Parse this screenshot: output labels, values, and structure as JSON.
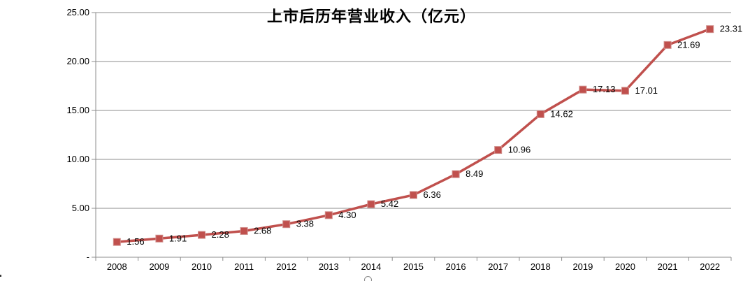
{
  "chart_data": {
    "type": "line",
    "title": "上市后历年营业收入（亿元）",
    "categories": [
      "2008",
      "2009",
      "2010",
      "2011",
      "2012",
      "2013",
      "2014",
      "2015",
      "2016",
      "2017",
      "2018",
      "2019",
      "2020",
      "2021",
      "2022"
    ],
    "values": [
      1.56,
      1.91,
      2.28,
      2.68,
      3.38,
      4.3,
      5.42,
      6.36,
      8.49,
      10.96,
      14.62,
      17.13,
      17.01,
      21.69,
      23.31
    ],
    "data_labels": [
      "1.56",
      "1.91",
      "2.28",
      "2.68",
      "3.38",
      "4.30",
      "5.42",
      "6.36",
      "8.49",
      "10.96",
      "14.62",
      "17.13",
      "17.01",
      "21.69",
      "23.31"
    ],
    "y_ticks": [
      {
        "label": "25.00",
        "value": 25
      },
      {
        "label": "20.00",
        "value": 20
      },
      {
        "label": "15.00",
        "value": 15
      },
      {
        "label": "10.00",
        "value": 10
      },
      {
        "label": "5.00",
        "value": 5
      },
      {
        "label": "-",
        "value": 0
      }
    ],
    "ylim": [
      0,
      25
    ],
    "xlabel": "",
    "ylabel": "",
    "grid": true,
    "legend": "none",
    "series_color": "#C0504D",
    "marker_edge_color": "#D08E8B",
    "gridline_color": "#8C8C8C",
    "axis_color": "#8C8C8C",
    "label_color": "#000000"
  }
}
